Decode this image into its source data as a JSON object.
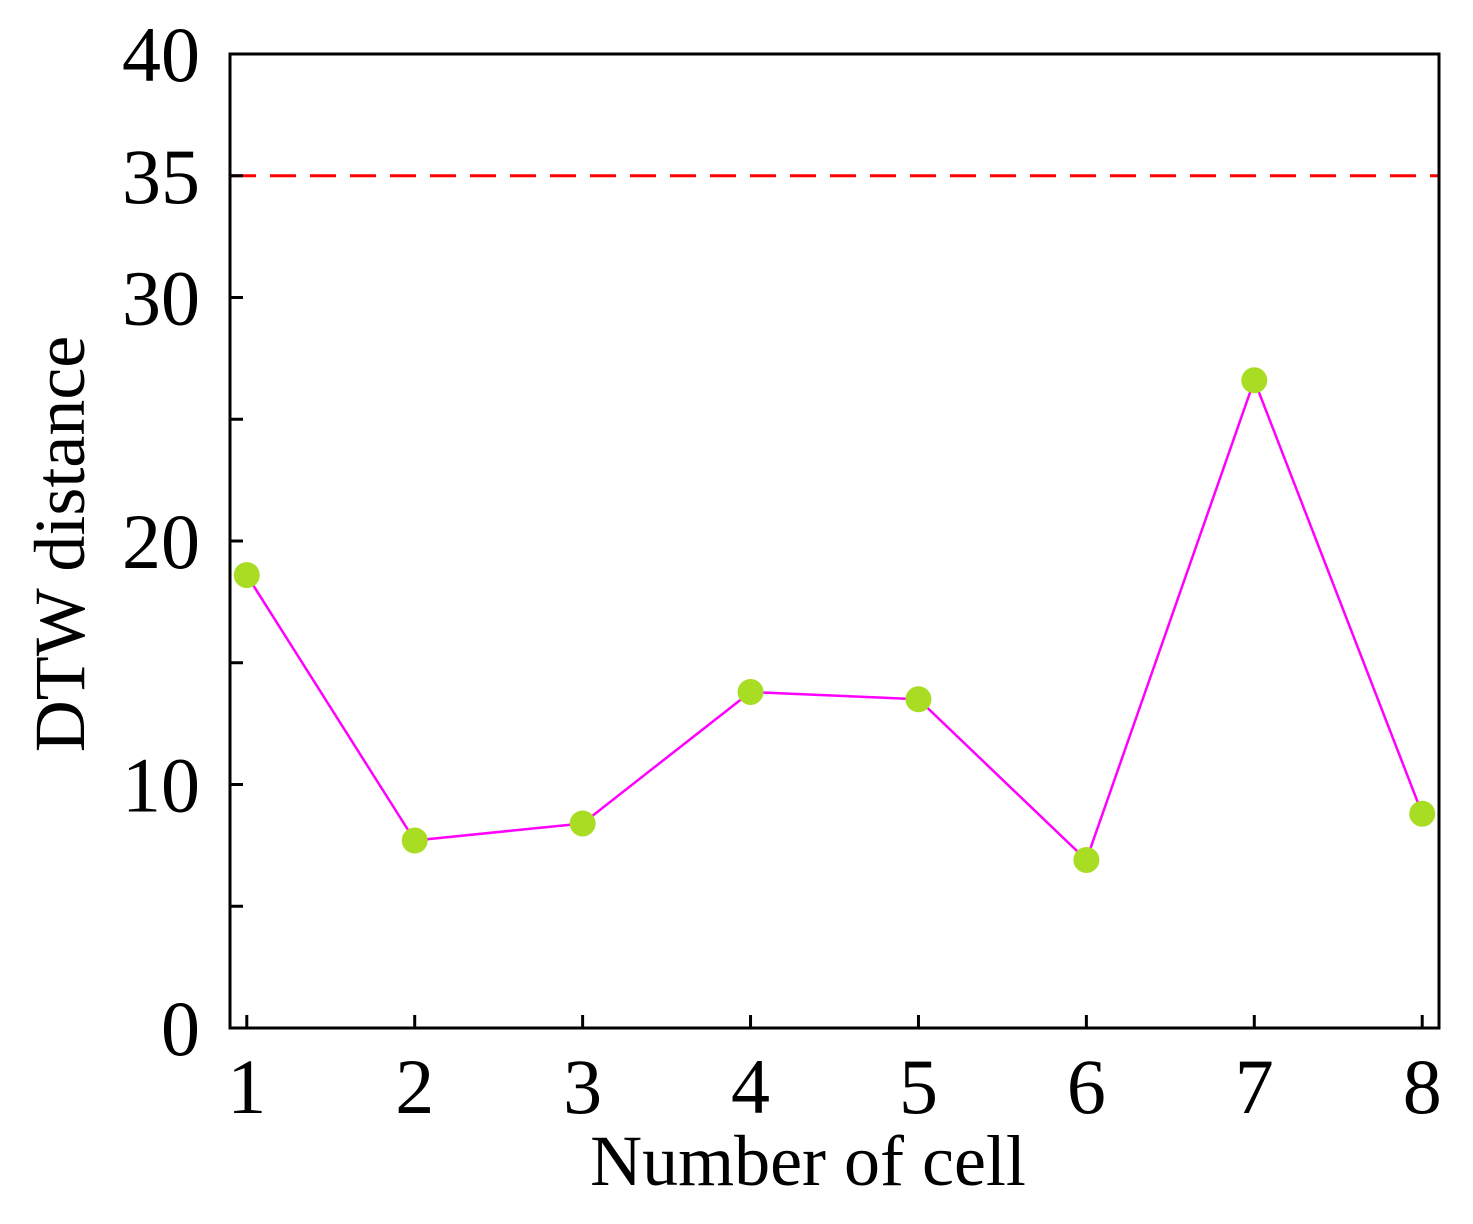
{
  "chart_data": {
    "type": "line",
    "title": "",
    "xlabel": "Number of cell",
    "ylabel": "DTW distance",
    "x": [
      1,
      2,
      3,
      4,
      5,
      6,
      7,
      8
    ],
    "x_tick_labels": [
      "1",
      "2",
      "3",
      "4",
      "5",
      "6",
      "7",
      "8"
    ],
    "series": [
      {
        "name": "DTW distance",
        "values": [
          18.6,
          7.7,
          8.4,
          13.8,
          13.5,
          6.9,
          26.6,
          8.8
        ],
        "line_color": "#ff00ff",
        "marker_color": "#a8dd23"
      }
    ],
    "threshold": {
      "value": 35,
      "style": "dashed",
      "color": "#ff0000"
    },
    "xlim": [
      0.9,
      8.1
    ],
    "ylim": [
      0,
      40
    ],
    "y_ticks": [
      0,
      5,
      10,
      15,
      20,
      25,
      30,
      35,
      40
    ],
    "y_tick_labels": [
      "0",
      "",
      "10",
      "",
      "20",
      "",
      "30",
      "35",
      "40"
    ],
    "grid": false,
    "legend": "none"
  }
}
